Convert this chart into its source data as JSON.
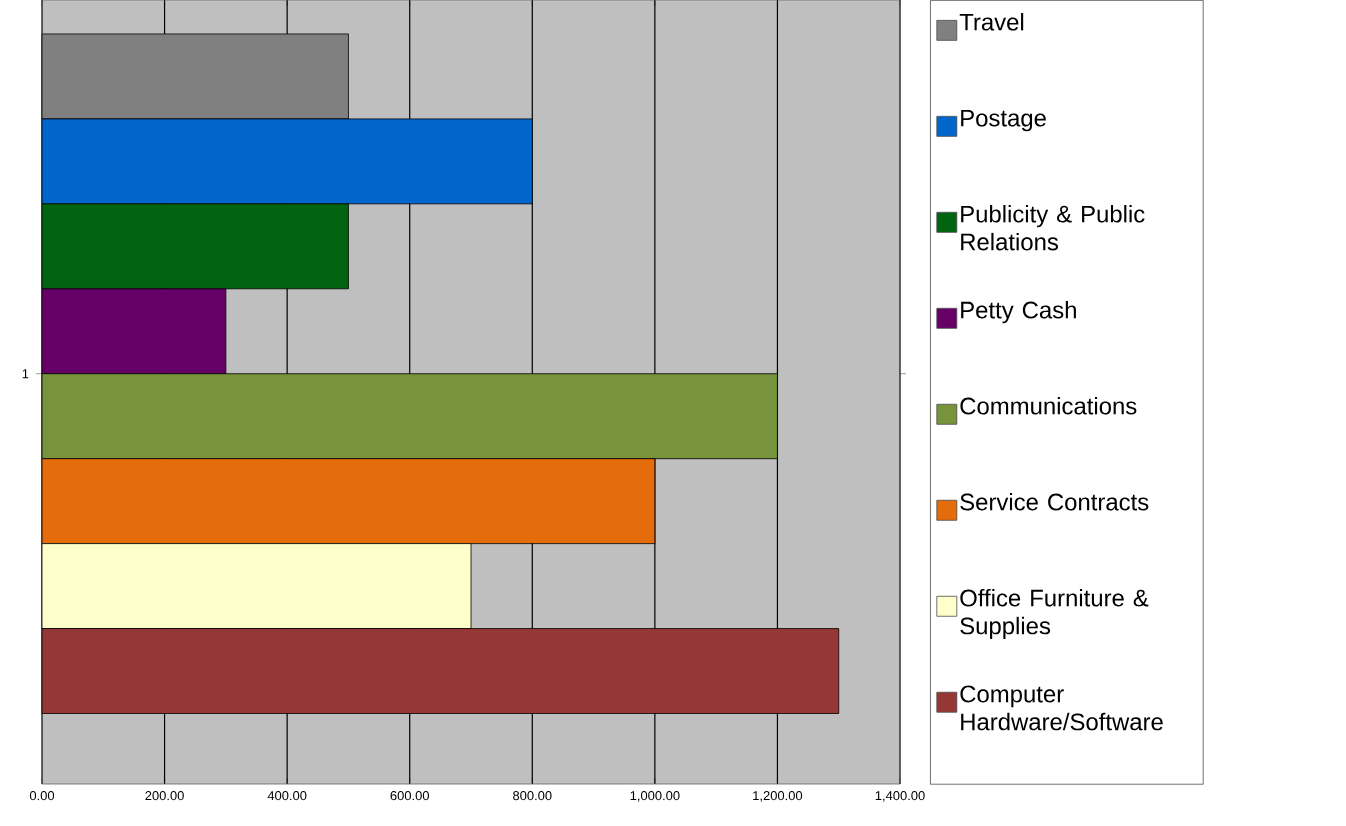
{
  "chart_data": {
    "type": "bar",
    "orientation": "horizontal",
    "categories": [
      "1"
    ],
    "series": [
      {
        "name": "Travel",
        "color": "#808080",
        "values": [
          500
        ]
      },
      {
        "name": "Postage",
        "color": "#0066cc",
        "values": [
          800
        ]
      },
      {
        "name": "Publicity & Public Relations",
        "color": "#006411",
        "values": [
          500
        ]
      },
      {
        "name": "Petty Cash",
        "color": "#660066",
        "values": [
          300
        ]
      },
      {
        "name": "Communications",
        "color": "#77933c",
        "values": [
          1200
        ]
      },
      {
        "name": "Service Contracts",
        "color": "#e46c0a",
        "values": [
          1000
        ]
      },
      {
        "name": "Office Furniture & Supplies",
        "color": "#ffffcc",
        "values": [
          700
        ]
      },
      {
        "name": "Computer Hardware/Software",
        "color": "#953735",
        "values": [
          1300
        ]
      }
    ],
    "xlim": [
      0,
      1400
    ],
    "xticks": [
      {
        "value": 0,
        "label": "0.00"
      },
      {
        "value": 200,
        "label": "200.00"
      },
      {
        "value": 400,
        "label": "400.00"
      },
      {
        "value": 600,
        "label": "600.00"
      },
      {
        "value": 800,
        "label": "800.00"
      },
      {
        "value": 1000,
        "label": "1,000.00"
      },
      {
        "value": 1200,
        "label": "1,200.00"
      },
      {
        "value": 1400,
        "label": "1,400.00"
      }
    ],
    "grid": "x",
    "legend": "right"
  }
}
